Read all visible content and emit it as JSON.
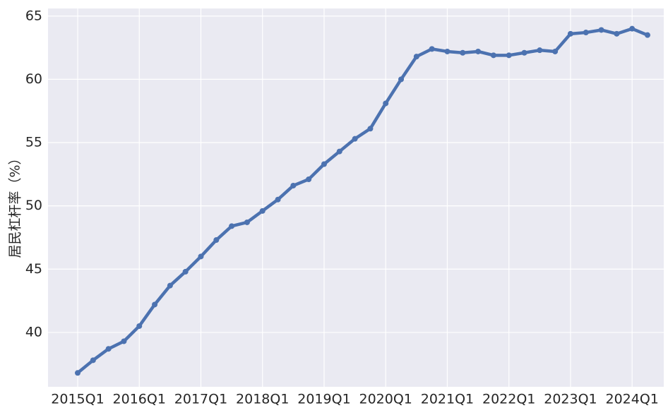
{
  "chart_data": {
    "type": "line",
    "y_label": "居民杠杆率（%）",
    "categories": [
      "2015Q1",
      null,
      null,
      null,
      "2016Q1",
      null,
      null,
      null,
      "2017Q1",
      null,
      null,
      null,
      "2018Q1",
      null,
      null,
      null,
      "2019Q1",
      null,
      null,
      null,
      "2020Q1",
      null,
      null,
      null,
      "2021Q1",
      null,
      null,
      null,
      "2022Q1",
      null,
      null,
      null,
      "2023Q1",
      null,
      null,
      null,
      "2024Q1",
      null
    ],
    "series": [
      {
        "color": "#4c72b0",
        "values": [
          36.8,
          37.8,
          38.7,
          39.3,
          40.5,
          42.2,
          43.7,
          44.8,
          46.0,
          47.3,
          48.4,
          48.7,
          49.6,
          50.5,
          51.6,
          52.1,
          53.3,
          54.3,
          55.3,
          56.1,
          58.1,
          60.0,
          61.8,
          62.4,
          62.2,
          62.1,
          62.2,
          61.9,
          61.9,
          62.1,
          62.3,
          62.2,
          63.6,
          63.7,
          63.9,
          63.6,
          64.0,
          63.5
        ]
      }
    ],
    "ylim": [
      35.7,
      65.6
    ],
    "yticks": [
      40,
      45,
      50,
      55,
      60,
      65
    ],
    "grid": true
  }
}
